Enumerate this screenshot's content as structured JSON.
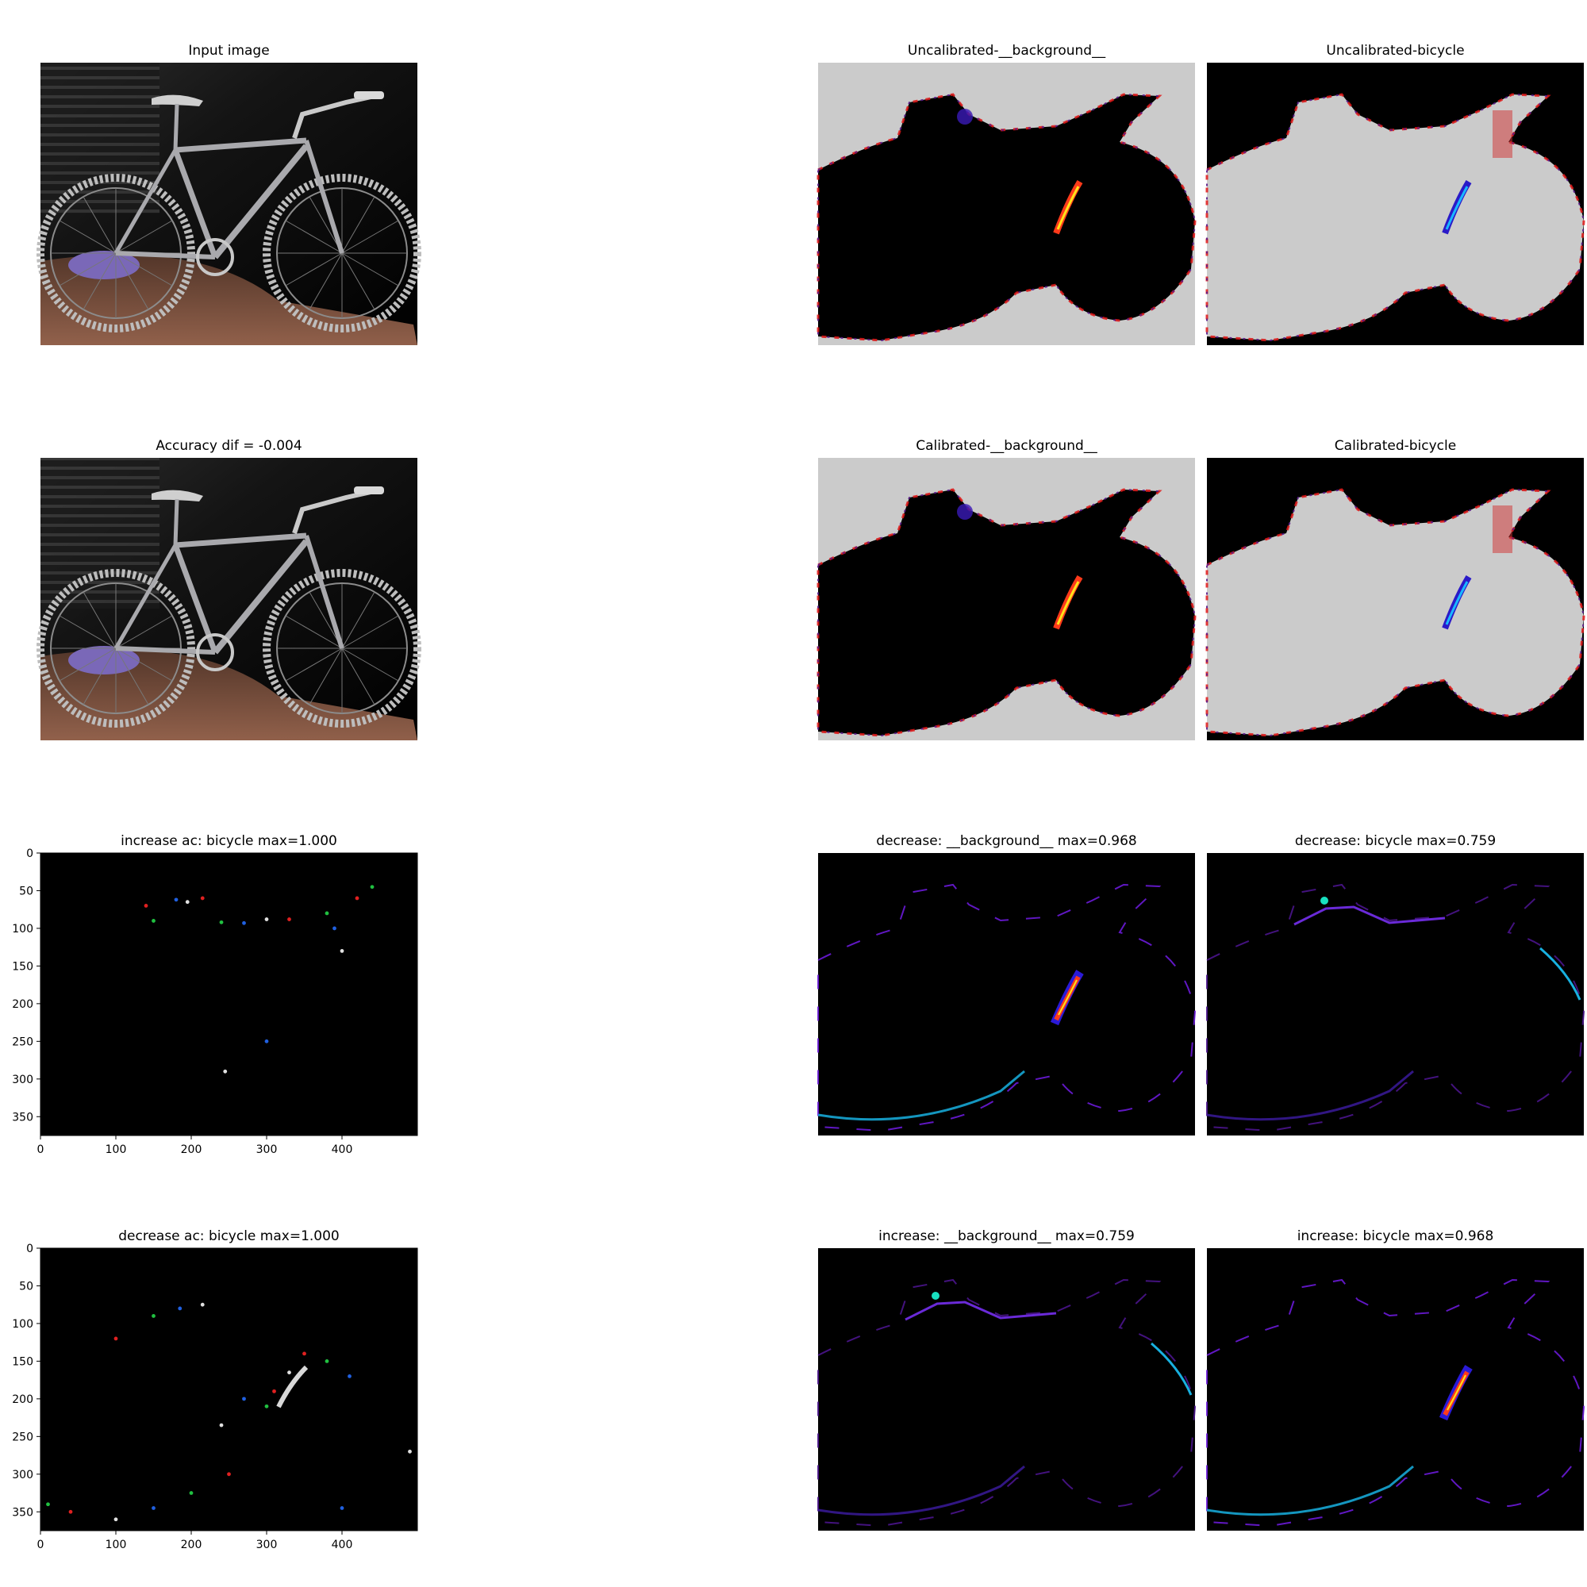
{
  "chart_data": [
    {
      "type": "image",
      "id": "input-image",
      "title": "Input image",
      "content": "photo",
      "show_axes": false
    },
    {
      "type": "heatmap",
      "id": "uncal-background",
      "title": "Uncalibrated-__background__",
      "content": "background-mask",
      "show_axes": false
    },
    {
      "type": "heatmap",
      "id": "uncal-bicycle",
      "title": "Uncalibrated-bicycle",
      "content": "bicycle-mask",
      "show_axes": false
    },
    {
      "type": "image",
      "id": "accuracy-dif",
      "title": "Accuracy dif = -0.004",
      "content": "photo",
      "show_axes": false
    },
    {
      "type": "heatmap",
      "id": "cal-background",
      "title": "Calibrated-__background__",
      "content": "background-mask",
      "show_axes": false
    },
    {
      "type": "heatmap",
      "id": "cal-bicycle",
      "title": "Calibrated-bicycle",
      "content": "bicycle-mask",
      "show_axes": false
    },
    {
      "type": "heatmap",
      "id": "increase-ac-bicycle",
      "title": "increase ac: bicycle max=1.000",
      "content": "sparse-edges",
      "show_axes": true,
      "xticks": [
        0,
        100,
        200,
        300,
        400
      ],
      "yticks": [
        0,
        50,
        100,
        150,
        200,
        250,
        300,
        350
      ],
      "xlim": [
        0,
        500
      ],
      "ylim": [
        375,
        0
      ]
    },
    {
      "type": "heatmap",
      "id": "decrease-background",
      "title": "decrease: __background__ max=0.968",
      "content": "diff-edges",
      "show_axes": false
    },
    {
      "type": "heatmap",
      "id": "decrease-bicycle",
      "title": "decrease: bicycle max=0.759",
      "content": "diff-edges-faint",
      "show_axes": false
    },
    {
      "type": "heatmap",
      "id": "decrease-ac-bicycle",
      "title": "decrease ac: bicycle max=1.000",
      "content": "sparse-edges-2",
      "show_axes": true,
      "xticks": [
        0,
        100,
        200,
        300,
        400
      ],
      "yticks": [
        0,
        50,
        100,
        150,
        200,
        250,
        300,
        350
      ],
      "xlim": [
        0,
        500
      ],
      "ylim": [
        375,
        0
      ]
    },
    {
      "type": "heatmap",
      "id": "increase-background",
      "title": "increase: __background__ max=0.759",
      "content": "diff-edges-faint",
      "show_axes": false
    },
    {
      "type": "heatmap",
      "id": "increase-bicycle",
      "title": "increase: bicycle max=0.968",
      "content": "diff-edges",
      "show_axes": false
    }
  ]
}
